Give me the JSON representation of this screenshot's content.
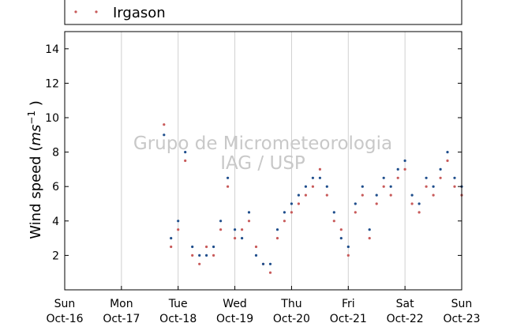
{
  "chart_data": {
    "type": "scatter",
    "title": "",
    "xlabel": "",
    "ylabel": "Wind speed",
    "ylabel_unit_base": "ms",
    "ylabel_unit_exp": "−1",
    "ylim": [
      0,
      15
    ],
    "xlim": [
      "2016-10-16",
      "2016-10-23"
    ],
    "yticks": [
      2,
      4,
      6,
      8,
      10,
      12,
      14
    ],
    "xticks": [
      {
        "day": "Sun",
        "date": "Oct-16"
      },
      {
        "day": "Mon",
        "date": "Oct-17"
      },
      {
        "day": "Tue",
        "date": "Oct-18"
      },
      {
        "day": "Wed",
        "date": "Oct-19"
      },
      {
        "day": "Thu",
        "date": "Oct-20"
      },
      {
        "day": "Fri",
        "date": "Oct-21"
      },
      {
        "day": "Sat",
        "date": "Oct-22"
      },
      {
        "day": "Sun",
        "date": "Oct-23"
      }
    ],
    "grid": "vertical",
    "legend_position": "top",
    "watermark": [
      "Grupo de Micrometeorologia",
      "IAG / USP"
    ],
    "series": [
      {
        "name": "Irgason",
        "color": "#c85a5a",
        "x": [
          "2016-10-17T18:00",
          "2016-10-17T21:00",
          "2016-10-18T00:00",
          "2016-10-18T03:00",
          "2016-10-18T06:00",
          "2016-10-18T09:00",
          "2016-10-18T12:00",
          "2016-10-18T15:00",
          "2016-10-18T18:00",
          "2016-10-18T21:00",
          "2016-10-19T00:00",
          "2016-10-19T03:00",
          "2016-10-19T06:00",
          "2016-10-19T09:00",
          "2016-10-19T12:00",
          "2016-10-19T15:00",
          "2016-10-19T18:00",
          "2016-10-19T21:00",
          "2016-10-20T00:00",
          "2016-10-20T03:00",
          "2016-10-20T06:00",
          "2016-10-20T09:00",
          "2016-10-20T12:00",
          "2016-10-20T15:00",
          "2016-10-20T18:00",
          "2016-10-20T21:00",
          "2016-10-21T00:00",
          "2016-10-21T03:00",
          "2016-10-21T06:00",
          "2016-10-21T09:00",
          "2016-10-21T12:00",
          "2016-10-21T15:00",
          "2016-10-21T18:00",
          "2016-10-21T21:00",
          "2016-10-22T00:00",
          "2016-10-22T03:00",
          "2016-10-22T06:00",
          "2016-10-22T09:00",
          "2016-10-22T12:00",
          "2016-10-22T15:00",
          "2016-10-22T18:00",
          "2016-10-22T21:00",
          "2016-10-23T00:00"
        ],
        "y": [
          9.6,
          2.5,
          3.5,
          7.5,
          2.0,
          1.5,
          2.5,
          2.0,
          3.5,
          6.0,
          3.0,
          3.5,
          4.0,
          2.5,
          1.5,
          1.0,
          3.0,
          4.0,
          4.5,
          5.0,
          5.5,
          6.0,
          7.0,
          5.5,
          4.0,
          3.5,
          2.0,
          4.5,
          5.5,
          3.0,
          5.0,
          6.0,
          5.5,
          6.5,
          7.0,
          5.0,
          4.5,
          6.0,
          5.5,
          6.5,
          7.5,
          6.0,
          5.5
        ]
      },
      {
        "name": "",
        "color": "#1f4e8c",
        "x": [
          "2016-10-17T18:00",
          "2016-10-17T21:00",
          "2016-10-18T00:00",
          "2016-10-18T03:00",
          "2016-10-18T06:00",
          "2016-10-18T09:00",
          "2016-10-18T12:00",
          "2016-10-18T15:00",
          "2016-10-18T18:00",
          "2016-10-18T21:00",
          "2016-10-19T00:00",
          "2016-10-19T03:00",
          "2016-10-19T06:00",
          "2016-10-19T09:00",
          "2016-10-19T12:00",
          "2016-10-19T15:00",
          "2016-10-19T18:00",
          "2016-10-19T21:00",
          "2016-10-20T00:00",
          "2016-10-20T03:00",
          "2016-10-20T06:00",
          "2016-10-20T09:00",
          "2016-10-20T12:00",
          "2016-10-20T15:00",
          "2016-10-20T18:00",
          "2016-10-20T21:00",
          "2016-10-21T00:00",
          "2016-10-21T03:00",
          "2016-10-21T06:00",
          "2016-10-21T09:00",
          "2016-10-21T12:00",
          "2016-10-21T15:00",
          "2016-10-21T18:00",
          "2016-10-21T21:00",
          "2016-10-22T00:00",
          "2016-10-22T03:00",
          "2016-10-22T06:00",
          "2016-10-22T09:00",
          "2016-10-22T12:00",
          "2016-10-22T15:00",
          "2016-10-22T18:00",
          "2016-10-22T21:00",
          "2016-10-23T00:00"
        ],
        "y": [
          9.0,
          3.0,
          4.0,
          8.0,
          2.5,
          2.0,
          2.0,
          2.5,
          4.0,
          6.5,
          3.5,
          3.0,
          4.5,
          2.0,
          1.5,
          1.5,
          3.5,
          4.5,
          5.0,
          5.5,
          6.0,
          6.5,
          6.5,
          6.0,
          4.5,
          3.0,
          2.5,
          5.0,
          6.0,
          3.5,
          5.5,
          6.5,
          6.0,
          7.0,
          7.5,
          5.5,
          5.0,
          6.5,
          6.0,
          7.0,
          8.0,
          6.5,
          6.0
        ]
      }
    ]
  }
}
